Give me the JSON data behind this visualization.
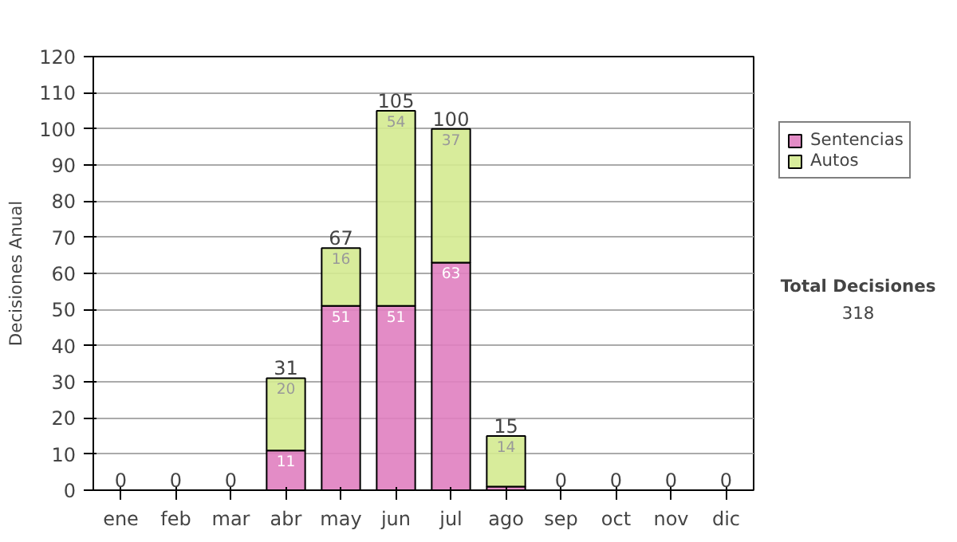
{
  "chart_data": {
    "type": "bar",
    "stacked": true,
    "ylabel": "Decisiones Anual",
    "categories": [
      "ene",
      "feb",
      "mar",
      "abr",
      "may",
      "jun",
      "jul",
      "ago",
      "sep",
      "oct",
      "nov",
      "dic"
    ],
    "series": [
      {
        "name": "Sentencias",
        "color": "#e07fc0",
        "values": [
          0,
          0,
          0,
          11,
          51,
          51,
          63,
          1,
          0,
          0,
          0,
          0
        ],
        "value_labels": [
          null,
          null,
          null,
          "11",
          "51",
          "51",
          "63",
          null,
          null,
          null,
          null,
          null
        ]
      },
      {
        "name": "Autos",
        "color": "#d4ea90",
        "values": [
          0,
          0,
          0,
          20,
          16,
          54,
          37,
          14,
          0,
          0,
          0,
          0
        ],
        "value_labels": [
          null,
          null,
          null,
          "20",
          "16",
          "54",
          "37",
          "14",
          null,
          null,
          null,
          null
        ]
      }
    ],
    "totals": [
      "0",
      "0",
      "0",
      "31",
      "67",
      "105",
      "100",
      "15",
      "0",
      "0",
      "0",
      "0"
    ],
    "ylim": [
      0,
      120
    ],
    "yticks": [
      0,
      10,
      20,
      30,
      40,
      50,
      60,
      70,
      80,
      90,
      100,
      110,
      120
    ],
    "grid": "y",
    "legend": "right",
    "annotations": [
      "Total Decisiones",
      "318"
    ]
  }
}
